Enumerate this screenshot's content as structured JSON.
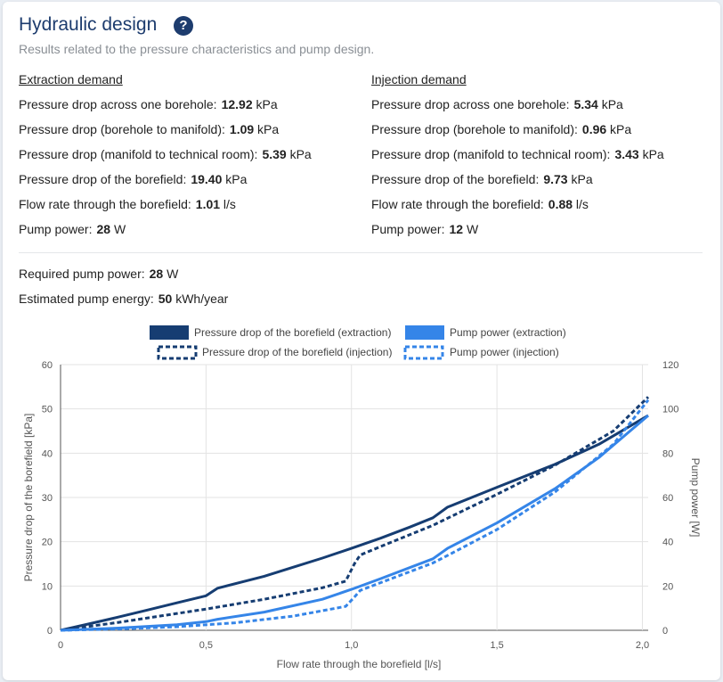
{
  "header": {
    "title": "Hydraulic design",
    "help_label": "?",
    "subtitle": "Results related to the pressure characteristics and pump design."
  },
  "extraction": {
    "heading": "Extraction demand",
    "rows": [
      {
        "label": "Pressure drop across one borehole:",
        "value": "12.92",
        "unit": "kPa"
      },
      {
        "label": "Pressure drop (borehole to manifold):",
        "value": "1.09",
        "unit": "kPa"
      },
      {
        "label": "Pressure drop (manifold to technical room):",
        "value": "5.39",
        "unit": "kPa"
      },
      {
        "label": "Pressure drop of the borefield:",
        "value": "19.40",
        "unit": "kPa"
      },
      {
        "label": "Flow rate through the borefield:",
        "value": "1.01",
        "unit": "l/s"
      },
      {
        "label": "Pump power:",
        "value": "28",
        "unit": "W"
      }
    ]
  },
  "injection": {
    "heading": "Injection demand",
    "rows": [
      {
        "label": "Pressure drop across one borehole:",
        "value": "5.34",
        "unit": "kPa"
      },
      {
        "label": "Pressure drop (borehole to manifold):",
        "value": "0.96",
        "unit": "kPa"
      },
      {
        "label": "Pressure drop (manifold to technical room):",
        "value": "3.43",
        "unit": "kPa"
      },
      {
        "label": "Pressure drop of the borefield:",
        "value": "9.73",
        "unit": "kPa"
      },
      {
        "label": "Flow rate through the borefield:",
        "value": "0.88",
        "unit": "l/s"
      },
      {
        "label": "Pump power:",
        "value": "12",
        "unit": "W"
      }
    ]
  },
  "summary": {
    "rows": [
      {
        "label": "Required pump power:",
        "value": "28",
        "unit": "W"
      },
      {
        "label": "Estimated pump energy:",
        "value": "50",
        "unit": "kWh/year"
      }
    ]
  },
  "colors": {
    "dark_blue": "#163d72",
    "light_blue": "#3585e8"
  },
  "chart_data": {
    "type": "line",
    "xlabel": "Flow rate through the borefield [l/s]",
    "ylabel": "Pressure drop of the borefield [kPa]",
    "y2label": "Pump power [W]",
    "xlim": [
      0,
      2.02
    ],
    "ylim": [
      0,
      60
    ],
    "y2lim": [
      0,
      120
    ],
    "x_ticks": [
      "0",
      "0,5",
      "1,0",
      "1,5",
      "2,0"
    ],
    "y_ticks": [
      "0",
      "10",
      "20",
      "30",
      "40",
      "50",
      "60"
    ],
    "y2_ticks": [
      "0",
      "20",
      "40",
      "60",
      "80",
      "100",
      "120"
    ],
    "legend_position": "top",
    "grid": true,
    "series": [
      {
        "name": "Pressure drop of the borefield (extraction)",
        "axis": "left",
        "style": "solid",
        "color": "#163d72",
        "points": [
          [
            0,
            0
          ],
          [
            0.1,
            1.5
          ],
          [
            0.2,
            3
          ],
          [
            0.3,
            4.6
          ],
          [
            0.4,
            6.2
          ],
          [
            0.5,
            7.8
          ],
          [
            0.54,
            9.5
          ],
          [
            0.7,
            12.2
          ],
          [
            0.9,
            16.3
          ],
          [
            1.0,
            18.5
          ],
          [
            1.1,
            20.8
          ],
          [
            1.2,
            23.3
          ],
          [
            1.28,
            25.4
          ],
          [
            1.33,
            27.8
          ],
          [
            1.5,
            32.3
          ],
          [
            1.7,
            37.5
          ],
          [
            1.85,
            42
          ],
          [
            2.02,
            48.5
          ]
        ]
      },
      {
        "name": "Pressure drop of the borefield (injection)",
        "axis": "left",
        "style": "dashed",
        "color": "#163d72",
        "points": [
          [
            0,
            0
          ],
          [
            0.1,
            0.9
          ],
          [
            0.2,
            1.8
          ],
          [
            0.3,
            2.8
          ],
          [
            0.5,
            4.8
          ],
          [
            0.7,
            7
          ],
          [
            0.9,
            9.6
          ],
          [
            0.98,
            11.1
          ],
          [
            1.01,
            15
          ],
          [
            1.03,
            17
          ],
          [
            1.1,
            18.9
          ],
          [
            1.28,
            23.7
          ],
          [
            1.33,
            25.3
          ],
          [
            1.5,
            30.7
          ],
          [
            1.7,
            37.3
          ],
          [
            1.9,
            45
          ],
          [
            2.02,
            52.7
          ]
        ]
      },
      {
        "name": "Pump power (extraction)",
        "axis": "right",
        "style": "solid",
        "color": "#3585e8",
        "points": [
          [
            0,
            0
          ],
          [
            0.2,
            1
          ],
          [
            0.4,
            2.5
          ],
          [
            0.5,
            3.9
          ],
          [
            0.54,
            5
          ],
          [
            0.7,
            8.2
          ],
          [
            0.9,
            14
          ],
          [
            1.0,
            18.5
          ],
          [
            1.1,
            23.3
          ],
          [
            1.28,
            32.3
          ],
          [
            1.33,
            37
          ],
          [
            1.5,
            48.5
          ],
          [
            1.7,
            64
          ],
          [
            1.85,
            78
          ],
          [
            2.02,
            97
          ]
        ]
      },
      {
        "name": "Pump power (injection)",
        "axis": "right",
        "style": "dashed",
        "color": "#3585e8",
        "points": [
          [
            0,
            0
          ],
          [
            0.2,
            0.6
          ],
          [
            0.4,
            1.6
          ],
          [
            0.6,
            3.4
          ],
          [
            0.8,
            6.4
          ],
          [
            0.98,
            10.8
          ],
          [
            1.01,
            15
          ],
          [
            1.03,
            18
          ],
          [
            1.1,
            21.5
          ],
          [
            1.28,
            30.4
          ],
          [
            1.33,
            33.8
          ],
          [
            1.5,
            45.5
          ],
          [
            1.7,
            62.5
          ],
          [
            1.9,
            84
          ],
          [
            2.02,
            104
          ]
        ]
      }
    ]
  }
}
